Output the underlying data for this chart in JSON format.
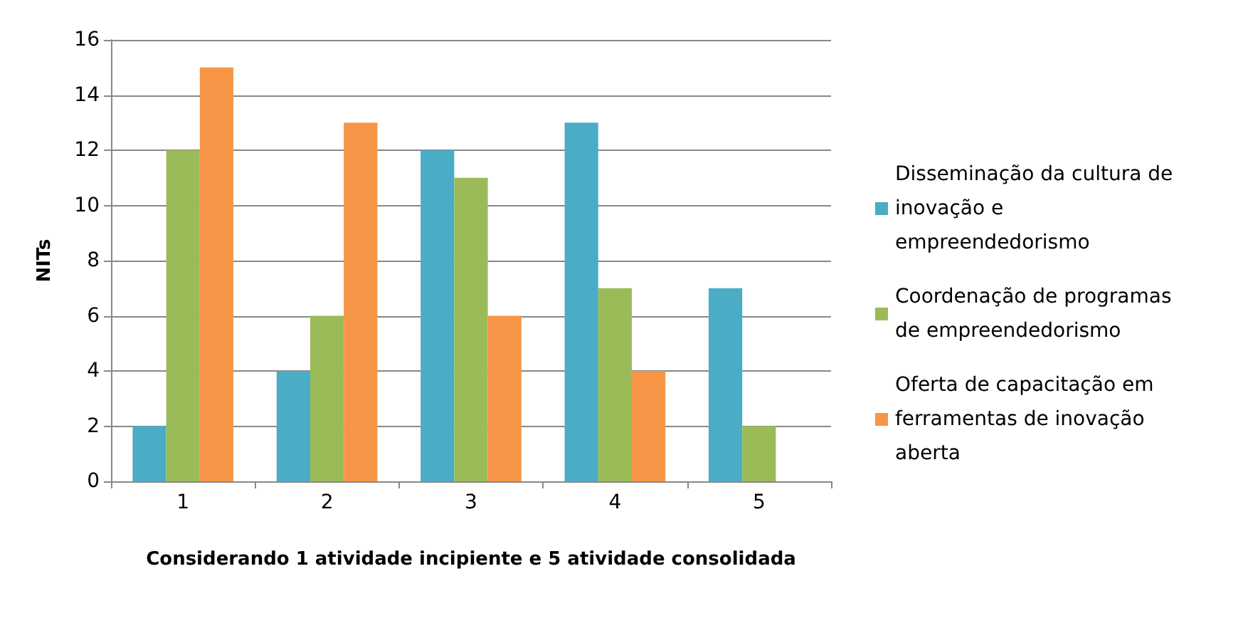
{
  "chart_data": {
    "type": "bar",
    "xlabel": "Considerando 1 atividade incipiente e 5 atividade consolidada",
    "ylabel": "NITs",
    "categories": [
      "1",
      "2",
      "3",
      "4",
      "5"
    ],
    "series": [
      {
        "name": "Disseminação da cultura de inovação e empreendedorismo",
        "color": "#4bacc6",
        "values": [
          2,
          4,
          12,
          13,
          7
        ]
      },
      {
        "name": "Coordenação de programas de empreendedorismo",
        "color": "#9bbb59",
        "values": [
          12,
          6,
          11,
          7,
          2
        ]
      },
      {
        "name": "Oferta de capacitação em ferramentas de inovação aberta",
        "color": "#f79646",
        "values": [
          15,
          13,
          6,
          4,
          0
        ]
      }
    ],
    "ylim": [
      0,
      16
    ],
    "yticks": [
      0,
      2,
      4,
      6,
      8,
      10,
      12,
      14,
      16
    ],
    "grid": "y",
    "legend": "right"
  }
}
